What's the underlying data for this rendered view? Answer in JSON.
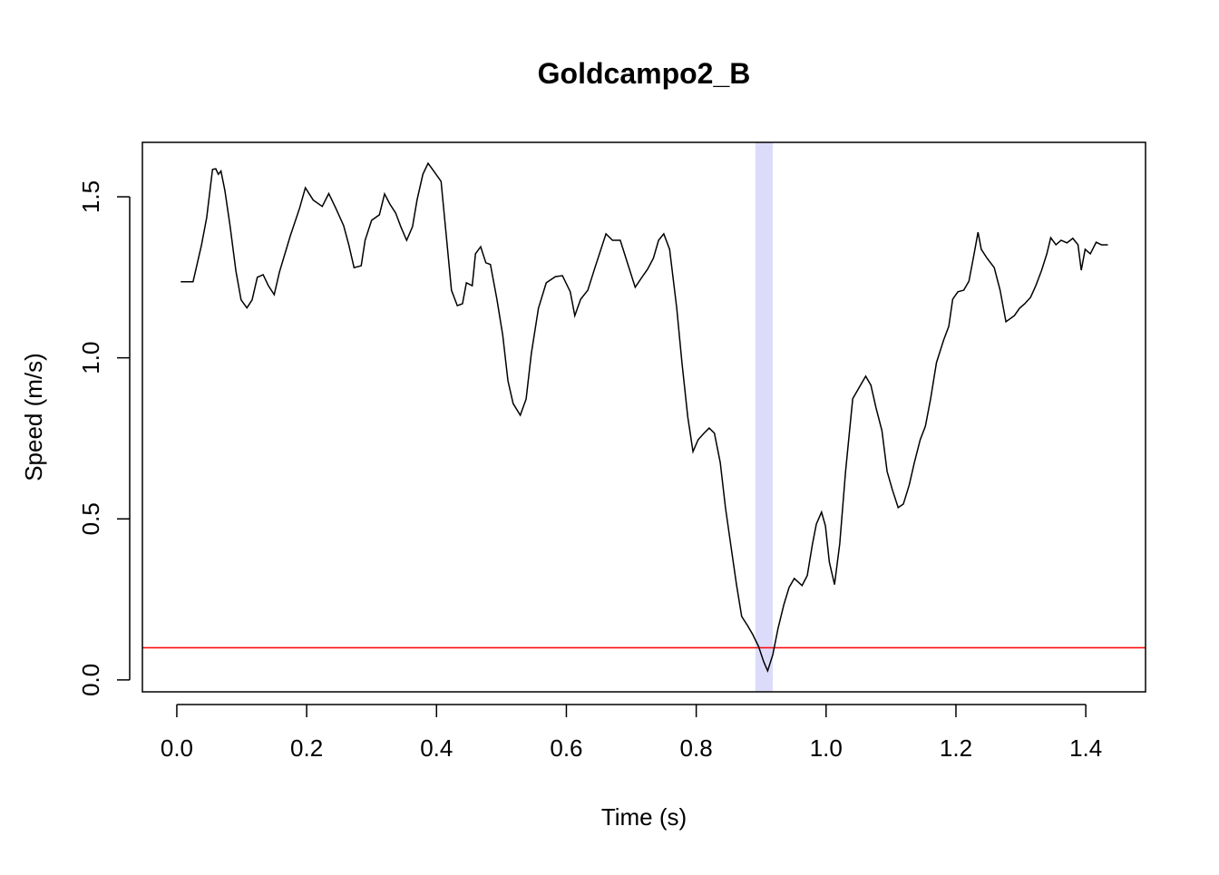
{
  "chart_data": {
    "type": "line",
    "title": "Goldcampo2_B",
    "x_label": "Time (s)",
    "y_label": "Speed (m/s)",
    "x": [
      0.006,
      0.025,
      0.038,
      0.046,
      0.055,
      0.06,
      0.064,
      0.068,
      0.074,
      0.082,
      0.091,
      0.099,
      0.108,
      0.116,
      0.124,
      0.133,
      0.141,
      0.15,
      0.158,
      0.175,
      0.189,
      0.198,
      0.21,
      0.224,
      0.234,
      0.245,
      0.257,
      0.265,
      0.273,
      0.284,
      0.29,
      0.3,
      0.312,
      0.32,
      0.328,
      0.337,
      0.345,
      0.354,
      0.363,
      0.37,
      0.379,
      0.387,
      0.395,
      0.407,
      0.415,
      0.423,
      0.432,
      0.44,
      0.446,
      0.455,
      0.46,
      0.468,
      0.476,
      0.483,
      0.493,
      0.502,
      0.51,
      0.518,
      0.529,
      0.538,
      0.546,
      0.557,
      0.569,
      0.583,
      0.594,
      0.606,
      0.613,
      0.622,
      0.633,
      0.644,
      0.661,
      0.671,
      0.683,
      0.694,
      0.706,
      0.717,
      0.725,
      0.734,
      0.742,
      0.75,
      0.759,
      0.77,
      0.778,
      0.787,
      0.795,
      0.803,
      0.812,
      0.82,
      0.828,
      0.837,
      0.845,
      0.854,
      0.862,
      0.87,
      0.879,
      0.887,
      0.896,
      0.904,
      0.91,
      0.918,
      0.926,
      0.935,
      0.943,
      0.951,
      0.963,
      0.971,
      0.979,
      0.985,
      0.993,
      0.999,
      1.005,
      1.013,
      1.021,
      1.03,
      1.041,
      1.049,
      1.061,
      1.069,
      1.077,
      1.086,
      1.094,
      1.102,
      1.111,
      1.119,
      1.128,
      1.136,
      1.145,
      1.153,
      1.161,
      1.17,
      1.181,
      1.189,
      1.195,
      1.203,
      1.212,
      1.22,
      1.228,
      1.234,
      1.239,
      1.248,
      1.259,
      1.268,
      1.277,
      1.29,
      1.298,
      1.306,
      1.315,
      1.323,
      1.332,
      1.34,
      1.346,
      1.354,
      1.362,
      1.371,
      1.38,
      1.388,
      1.393,
      1.399,
      1.407,
      1.416,
      1.424,
      1.434
    ],
    "series": [
      {
        "color": "#000000",
        "values": [
          1.236,
          1.236,
          1.35,
          1.435,
          1.585,
          1.587,
          1.57,
          1.58,
          1.52,
          1.41,
          1.27,
          1.18,
          1.155,
          1.18,
          1.25,
          1.258,
          1.224,
          1.196,
          1.266,
          1.38,
          1.464,
          1.528,
          1.49,
          1.47,
          1.51,
          1.464,
          1.41,
          1.35,
          1.28,
          1.286,
          1.365,
          1.427,
          1.444,
          1.509,
          1.478,
          1.45,
          1.407,
          1.365,
          1.407,
          1.49,
          1.57,
          1.604,
          1.582,
          1.548,
          1.38,
          1.21,
          1.162,
          1.168,
          1.233,
          1.224,
          1.323,
          1.345,
          1.295,
          1.29,
          1.182,
          1.07,
          0.929,
          0.858,
          0.822,
          0.872,
          1.013,
          1.154,
          1.233,
          1.252,
          1.255,
          1.205,
          1.131,
          1.182,
          1.21,
          1.28,
          1.385,
          1.365,
          1.365,
          1.295,
          1.219,
          1.252,
          1.275,
          1.309,
          1.365,
          1.385,
          1.337,
          1.154,
          0.985,
          0.816,
          0.709,
          0.746,
          0.766,
          0.782,
          0.766,
          0.675,
          0.535,
          0.408,
          0.296,
          0.197,
          0.169,
          0.141,
          0.104,
          0.056,
          0.028,
          0.079,
          0.16,
          0.234,
          0.287,
          0.315,
          0.293,
          0.324,
          0.422,
          0.484,
          0.521,
          0.478,
          0.366,
          0.296,
          0.422,
          0.647,
          0.873,
          0.901,
          0.943,
          0.915,
          0.844,
          0.774,
          0.647,
          0.591,
          0.535,
          0.546,
          0.605,
          0.675,
          0.746,
          0.788,
          0.873,
          0.985,
          1.055,
          1.098,
          1.182,
          1.205,
          1.21,
          1.238,
          1.323,
          1.39,
          1.337,
          1.309,
          1.28,
          1.21,
          1.112,
          1.131,
          1.154,
          1.168,
          1.188,
          1.224,
          1.272,
          1.323,
          1.373,
          1.351,
          1.365,
          1.357,
          1.371,
          1.351,
          1.272,
          1.337,
          1.323,
          1.359,
          1.351,
          1.351
        ]
      }
    ],
    "xlim": [
      -0.053,
      1.492
    ],
    "ylim": [
      -0.037,
      1.669
    ],
    "xticks": [
      {
        "value": 0,
        "label": "0.0"
      },
      0.2,
      0.4,
      0.6,
      0.8,
      {
        "value": 1,
        "label": "1.0"
      },
      1.2,
      1.4
    ],
    "yticks": [
      {
        "value": 0,
        "label": "0.0"
      },
      0.5,
      {
        "value": 1,
        "label": "1.0"
      },
      1.5
    ],
    "hline": {
      "value": 0.1,
      "color": "#ff0000"
    },
    "shaded_region": {
      "xmin": 0.891,
      "xmax": 0.918,
      "color": "#dcdcfa"
    }
  }
}
